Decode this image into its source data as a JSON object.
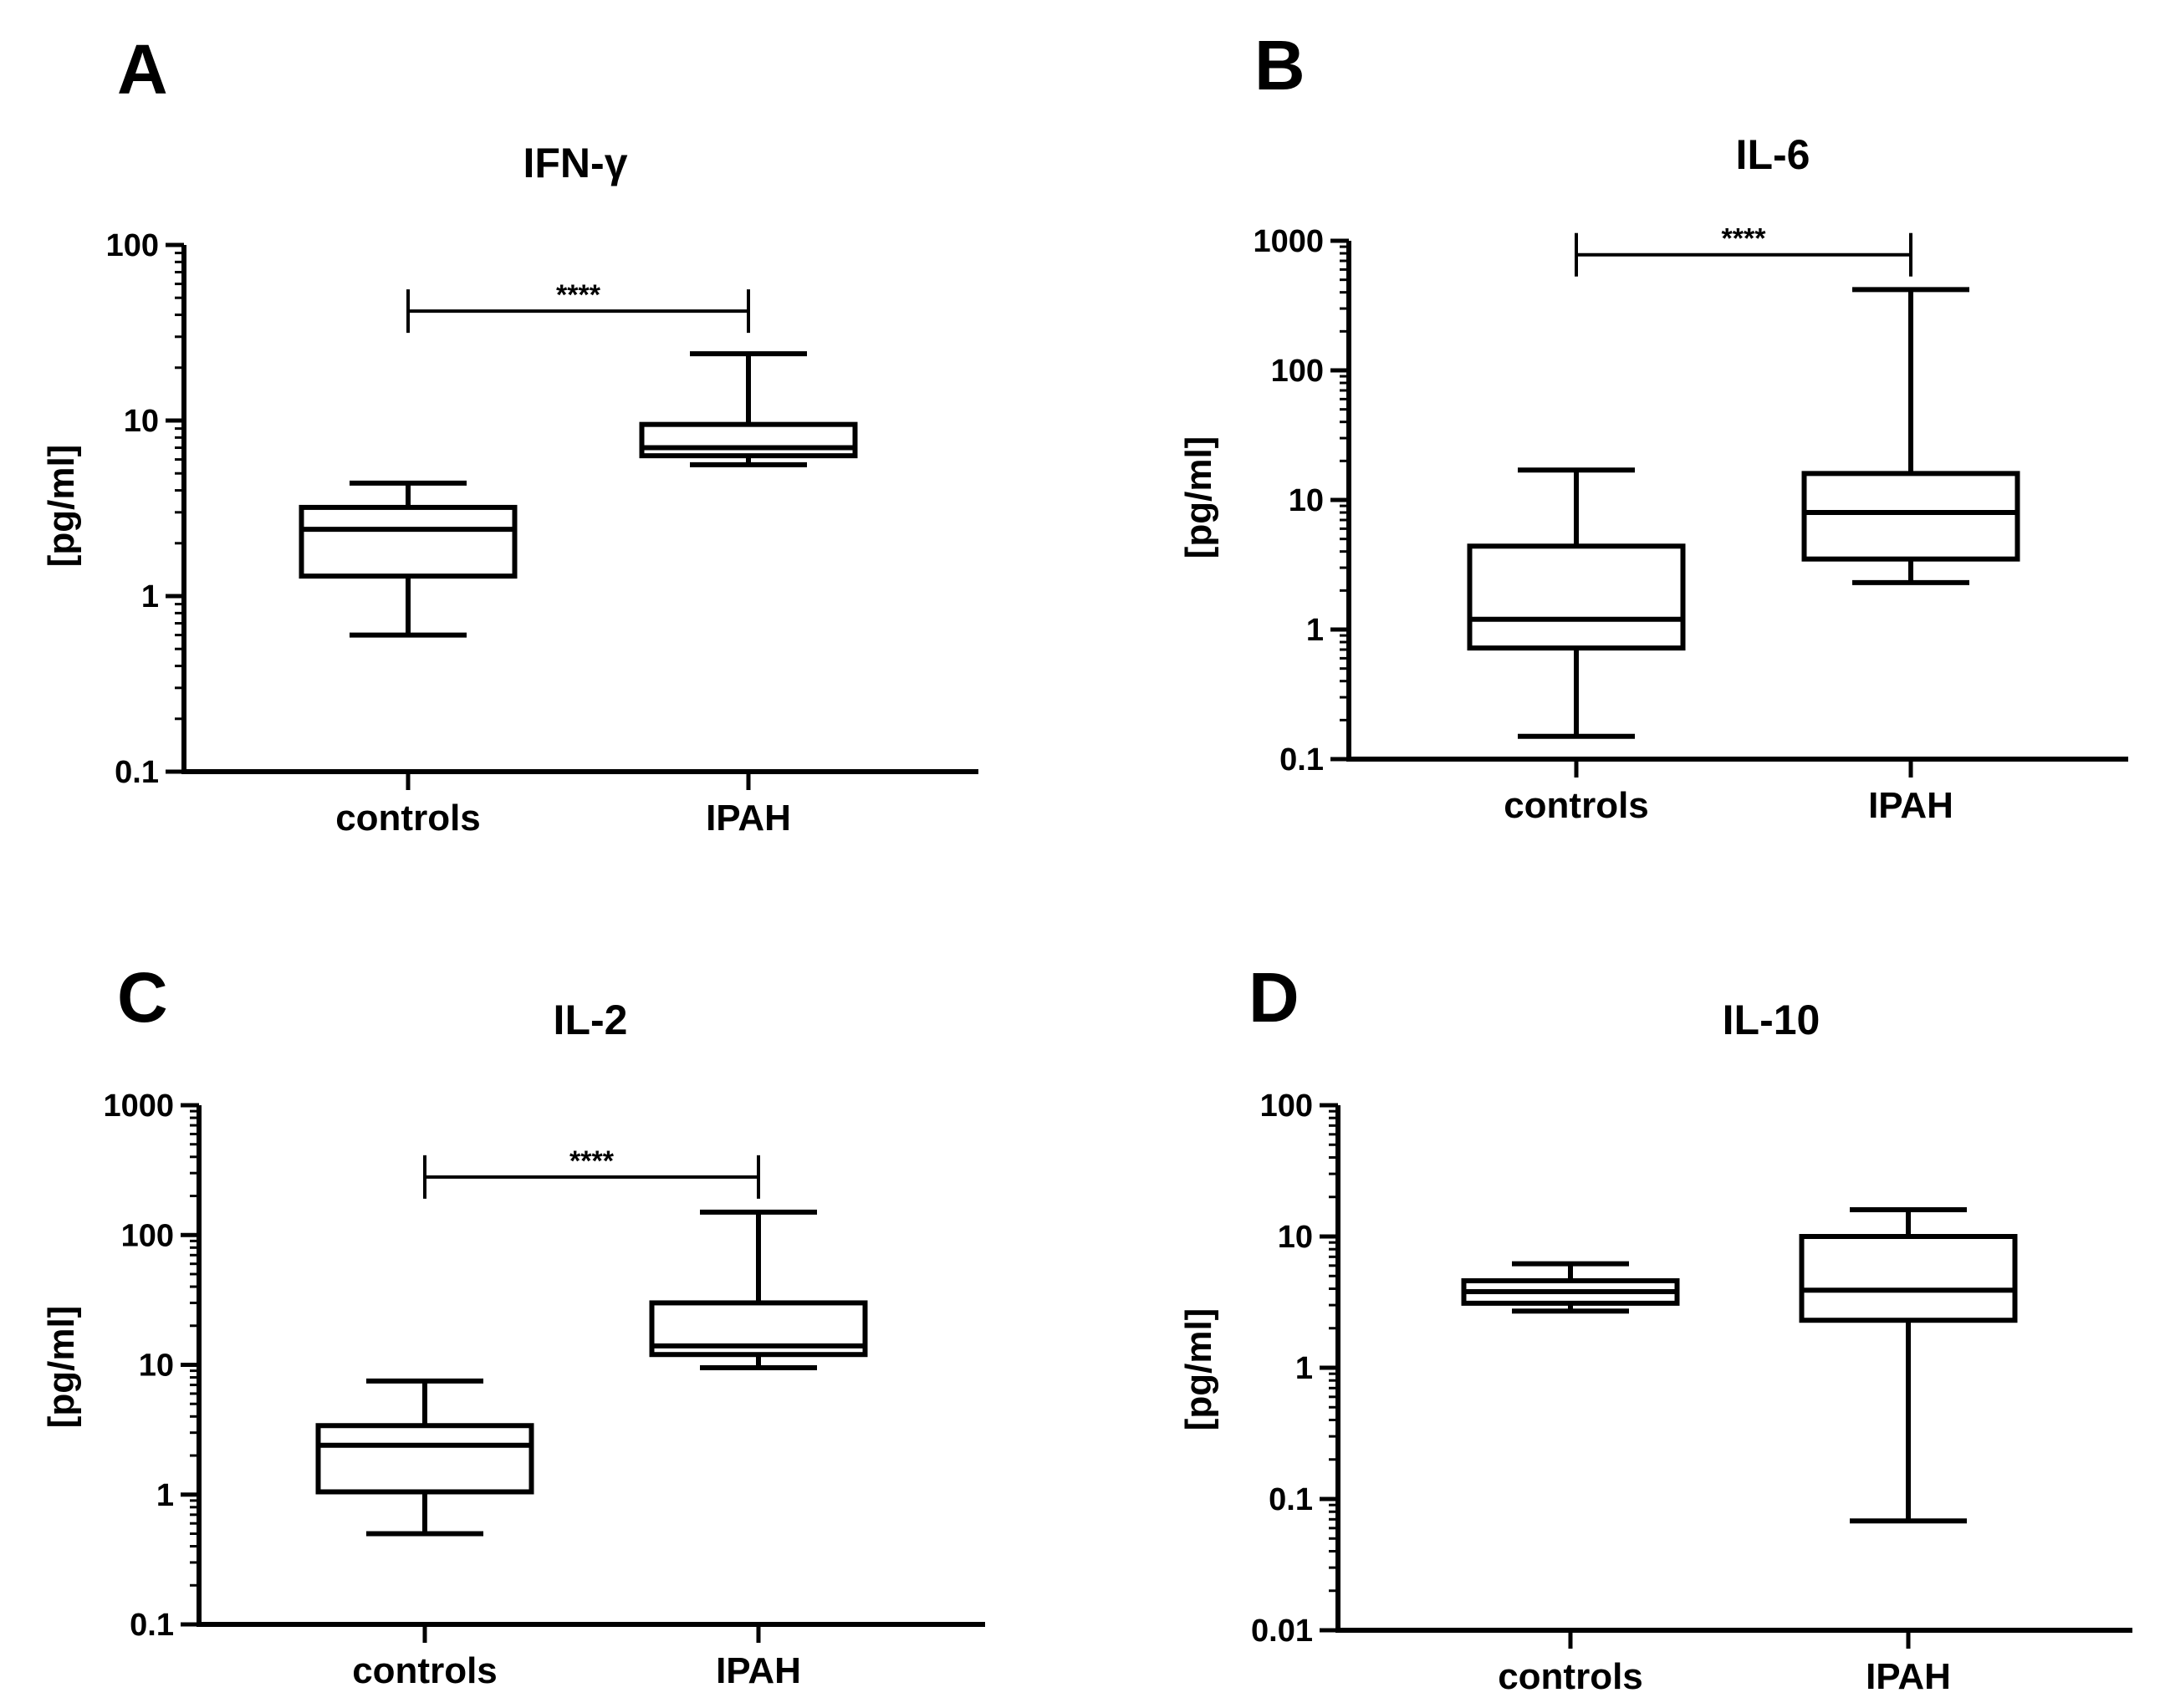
{
  "chart_data": [
    {
      "panel": "A",
      "type": "box",
      "title": "IFN-γ",
      "ylabel": "[pg/ml]",
      "yscale": "log",
      "ylim": [
        0.1,
        100
      ],
      "yticks": [
        0.1,
        1,
        10,
        100
      ],
      "ytick_labels": [
        "0.1",
        "1",
        "10",
        "100"
      ],
      "categories": [
        "controls",
        "IPAH"
      ],
      "boxes": [
        {
          "name": "controls",
          "min": 0.6,
          "q1": 1.3,
          "median": 2.4,
          "q3": 3.2,
          "max": 4.4
        },
        {
          "name": "IPAH",
          "min": 5.6,
          "q1": 6.3,
          "median": 7.0,
          "q3": 9.5,
          "max": 24
        }
      ],
      "significance": {
        "label": "****",
        "from": "controls",
        "to": "IPAH",
        "y": 42
      }
    },
    {
      "panel": "B",
      "type": "box",
      "title": "IL-6",
      "ylabel": "[pg/ml]",
      "yscale": "log",
      "ylim": [
        0.1,
        1000
      ],
      "yticks": [
        0.1,
        1,
        10,
        100,
        1000
      ],
      "ytick_labels": [
        "0.1",
        "1",
        "10",
        "100",
        "1000"
      ],
      "categories": [
        "controls",
        "IPAH"
      ],
      "boxes": [
        {
          "name": "controls",
          "min": 0.15,
          "q1": 0.72,
          "median": 1.2,
          "q3": 4.4,
          "max": 17
        },
        {
          "name": "IPAH",
          "min": 2.3,
          "q1": 3.5,
          "median": 8.0,
          "q3": 16,
          "max": 420
        }
      ],
      "significance": {
        "label": "****",
        "from": "controls",
        "to": "IPAH",
        "y": 780
      }
    },
    {
      "panel": "C",
      "type": "box",
      "title": "IL-2",
      "ylabel": "[pg/ml]",
      "yscale": "log",
      "ylim": [
        0.1,
        1000
      ],
      "yticks": [
        0.1,
        1,
        10,
        100,
        1000
      ],
      "ytick_labels": [
        "0.1",
        "1",
        "10",
        "100",
        "1000"
      ],
      "categories": [
        "controls",
        "IPAH"
      ],
      "boxes": [
        {
          "name": "controls",
          "min": 0.5,
          "q1": 1.05,
          "median": 2.4,
          "q3": 3.4,
          "max": 7.5
        },
        {
          "name": "IPAH",
          "min": 9.5,
          "q1": 12,
          "median": 14,
          "q3": 30,
          "max": 150
        }
      ],
      "significance": {
        "label": "****",
        "from": "controls",
        "to": "IPAH",
        "y": 280
      }
    },
    {
      "panel": "D",
      "type": "box",
      "title": "IL-10",
      "ylabel": "[pg/ml]",
      "yscale": "log",
      "ylim": [
        0.01,
        100
      ],
      "yticks": [
        0.01,
        0.1,
        1,
        10,
        100
      ],
      "ytick_labels": [
        "0.01",
        "0.1",
        "1",
        "10",
        "100"
      ],
      "categories": [
        "controls",
        "IPAH"
      ],
      "boxes": [
        {
          "name": "controls",
          "min": 2.7,
          "q1": 3.1,
          "median": 3.8,
          "q3": 4.6,
          "max": 6.2
        },
        {
          "name": "IPAH",
          "min": 0.068,
          "q1": 2.3,
          "median": 3.9,
          "q3": 10,
          "max": 16
        }
      ],
      "significance": null
    }
  ]
}
